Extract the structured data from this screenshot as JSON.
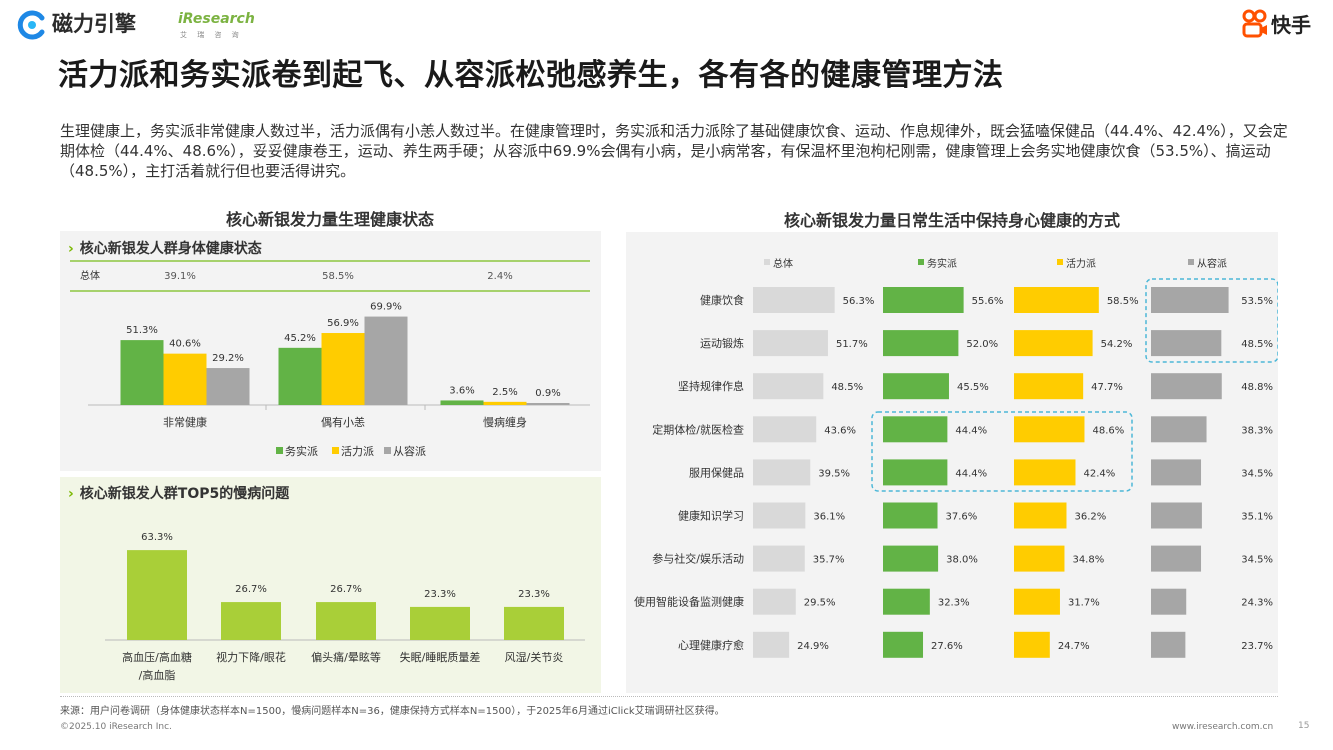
{
  "header": {
    "brand_left": "磁力引擎",
    "brand_iresearch": "iResearch",
    "brand_iresearch_sub": "艾 瑞 咨 询",
    "brand_right": "快手"
  },
  "title": "活力派和务实派卷到起飞、从容派松弛感养生，各有各的健康管理方法",
  "description": "生理健康上，务实派非常健康人数过半，活力派偶有小恙人数过半。在健康管理时，务实派和活力派除了基础健康饮食、运动、作息规律外，既会猛嗑保健品（44.4%、42.4%），又会定期体检（44.4%、48.6%），妥妥健康卷王，运动、养生两手硬；从容派中69.9%会偶有小病，是小病常客，有保温杯里泡枸杞刚需，健康管理上会务实地健康饮食（53.5%）、搞运动（48.5%），主打活着就行但也要活得讲究。",
  "left_section_title": "核心新银发力量生理健康状态",
  "right_section_title": "核心新银发力量日常生活中保持身心健康的方式",
  "panel1_title": "核心新银发人群身体健康状态",
  "panel2_title": "核心新银发人群TOP5的慢病问题",
  "colors": {
    "green": "#62b346",
    "yellow": "#ffcc00",
    "gray": "#a6a6a6",
    "lightgray": "#d9d9d9",
    "lime": "#a9cf38",
    "dash": "#4db8d8"
  },
  "chart_data": [
    {
      "type": "bar",
      "title": "核心新银发人群身体健康状态",
      "categories": [
        "非常健康",
        "偶有小恙",
        "慢病缠身"
      ],
      "overall_label": "总体",
      "overall_values": [
        "39.1%",
        "58.5%",
        "2.4%"
      ],
      "series": [
        {
          "name": "务实派",
          "values": [
            51.3,
            45.2,
            3.6
          ],
          "labels": [
            "51.3%",
            "45.2%",
            "3.6%"
          ]
        },
        {
          "name": "活力派",
          "values": [
            40.6,
            56.9,
            2.5
          ],
          "labels": [
            "40.6%",
            "56.9%",
            "2.5%"
          ]
        },
        {
          "name": "从容派",
          "values": [
            29.2,
            69.9,
            0.9
          ],
          "labels": [
            "29.2%",
            "69.9%",
            "0.9%"
          ]
        }
      ],
      "ylim": [
        0,
        100
      ]
    },
    {
      "type": "bar",
      "title": "核心新银发人群TOP5的慢病问题",
      "categories": [
        "高血压/高血糖/高血脂",
        "视力下降/眼花",
        "偏头痛/晕眩等",
        "失眠/睡眠质量差",
        "风湿/关节炎"
      ],
      "values": [
        63.3,
        26.7,
        26.7,
        23.3,
        23.3
      ],
      "labels": [
        "63.3%",
        "26.7%",
        "26.7%",
        "23.3%",
        "23.3%"
      ],
      "ylim": [
        0,
        70
      ]
    },
    {
      "type": "bar",
      "orientation": "horizontal",
      "title": "核心新银发力量日常生活中保持身心健康的方式",
      "categories": [
        "健康饮食",
        "运动锻炼",
        "坚持规律作息",
        "定期体检/就医检查",
        "服用保健品",
        "健康知识学习",
        "参与社交/娱乐活动",
        "使用智能设备监测健康",
        "心理健康疗愈"
      ],
      "series": [
        {
          "name": "总体",
          "values": [
            56.3,
            51.7,
            48.5,
            43.6,
            39.5,
            36.1,
            35.7,
            29.5,
            24.9
          ],
          "labels": [
            "56.3%",
            "51.7%",
            "48.5%",
            "43.6%",
            "39.5%",
            "36.1%",
            "35.7%",
            "29.5%",
            "24.9%"
          ]
        },
        {
          "name": "务实派",
          "values": [
            55.6,
            52.0,
            45.5,
            44.4,
            44.4,
            37.6,
            38.0,
            32.3,
            27.6
          ],
          "labels": [
            "55.6%",
            "52.0%",
            "45.5%",
            "44.4%",
            "44.4%",
            "37.6%",
            "38.0%",
            "32.3%",
            "27.6%"
          ]
        },
        {
          "name": "活力派",
          "values": [
            58.5,
            54.2,
            47.7,
            48.6,
            42.4,
            36.2,
            34.8,
            31.7,
            24.7
          ],
          "labels": [
            "58.5%",
            "54.2%",
            "47.7%",
            "48.6%",
            "42.4%",
            "36.2%",
            "34.8%",
            "31.7%",
            "24.7%"
          ]
        },
        {
          "name": "从容派",
          "values": [
            53.5,
            48.5,
            48.8,
            38.3,
            34.5,
            35.1,
            34.5,
            24.3,
            23.7
          ],
          "labels": [
            "53.5%",
            "48.5%",
            "48.8%",
            "38.3%",
            "34.5%",
            "35.1%",
            "34.5%",
            "24.3%",
            "23.7%"
          ]
        }
      ],
      "xlim": [
        0,
        100
      ]
    }
  ],
  "footer": {
    "source": "来源：用户问卷调研（身体健康状态样本N=1500，慢病问题样本N=36，健康保持方式样本N=1500），于2025年6月通过iClick艾瑞调研社区获得。",
    "copyright": "©2025.10 iResearch Inc.",
    "website": "www.iresearch.com.cn",
    "page": "15"
  }
}
